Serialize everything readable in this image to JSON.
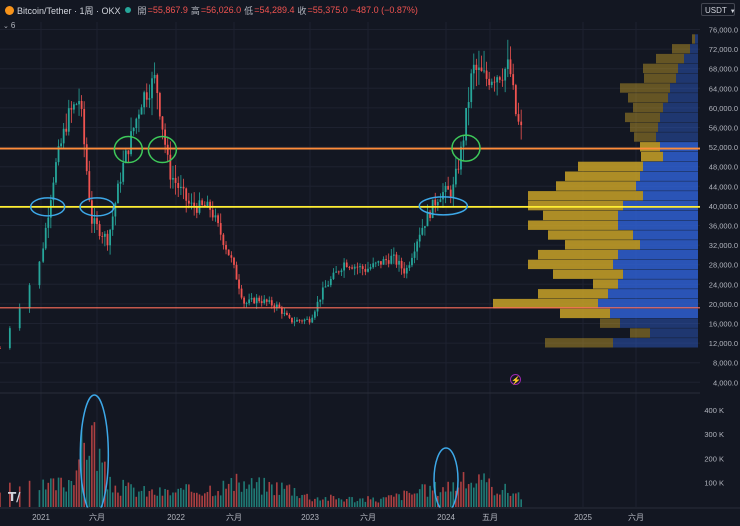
{
  "header": {
    "symbol": "Bitcoin/Tether · 1周 · OKX",
    "open_label": "開",
    "open_value": "=55,867.9",
    "high_label": "高",
    "high_value": "=56,026.0",
    "low_label": "低",
    "low_value": "=54,289.4",
    "close_label": "收",
    "close_value": "=55,375.0",
    "change_value": "−487.0 (−0.87%)"
  },
  "indicator_count": "6",
  "currency_unit": "USDT",
  "icons": [
    "chevron-down-icon",
    "bitcoin-icon",
    "status-dot-icon",
    "lightning-icon",
    "tradingview-logo-icon"
  ],
  "colors": {
    "background": "#131722",
    "up": "#26a69a",
    "down": "#ef5350",
    "vp_left": "#c9a227",
    "vp_right": "#2f5fd0",
    "line_orange": "#ff8c3a",
    "line_yellow": "#ffee33",
    "line_red": "#ff6e5a",
    "ellipse_blue": "#3da8e8",
    "ellipse_green": "#3ec95a"
  },
  "chart_data": {
    "type": "candlestick",
    "x_ticks": [
      "2021",
      "六月",
      "2022",
      "六月",
      "2023",
      "六月",
      "2024",
      "五月",
      "2025",
      "六月"
    ],
    "y_ticks": [
      "76,000.0",
      "72,000.0",
      "68,000.0",
      "64,000.0",
      "60,000.0",
      "56,000.0",
      "52,000.0",
      "48,000.0",
      "44,000.0",
      "40,000.0",
      "36,000.0",
      "32,000.0",
      "28,000.0",
      "24,000.0",
      "20,000.0",
      "16,000.0",
      "12,000.0",
      "8,000.0",
      "4,000.0"
    ],
    "y_ticks_values": [
      76000,
      72000,
      68000,
      64000,
      60000,
      56000,
      52000,
      48000,
      44000,
      40000,
      36000,
      32000,
      28000,
      24000,
      20000,
      16000,
      12000,
      8000,
      4000
    ],
    "volume_ticks": [
      "400 K",
      "300 K",
      "200 K",
      "100 K"
    ],
    "volume_ticks_values": [
      400000,
      300000,
      200000,
      100000
    ],
    "price_path": [
      [
        2020.92,
        11000
      ],
      [
        2021.0,
        29000
      ],
      [
        2021.1,
        47000
      ],
      [
        2021.2,
        58000
      ],
      [
        2021.29,
        62000
      ],
      [
        2021.38,
        37000
      ],
      [
        2021.5,
        33000
      ],
      [
        2021.6,
        47000
      ],
      [
        2021.75,
        62000
      ],
      [
        2021.85,
        66000
      ],
      [
        2021.95,
        47000
      ],
      [
        2022.1,
        40000
      ],
      [
        2022.25,
        39500
      ],
      [
        2022.4,
        29000
      ],
      [
        2022.5,
        20000
      ],
      [
        2022.6,
        21000
      ],
      [
        2022.75,
        19500
      ],
      [
        2022.85,
        16500
      ],
      [
        2023.0,
        16800
      ],
      [
        2023.1,
        23000
      ],
      [
        2023.25,
        28500
      ],
      [
        2023.4,
        27000
      ],
      [
        2023.6,
        29500
      ],
      [
        2023.7,
        26500
      ],
      [
        2023.8,
        34500
      ],
      [
        2023.95,
        42500
      ],
      [
        2024.05,
        43000
      ],
      [
        2024.12,
        52000
      ],
      [
        2024.2,
        68000
      ],
      [
        2024.3,
        66000
      ],
      [
        2024.42,
        67500
      ],
      [
        2024.47,
        68500
      ],
      [
        2024.52,
        58000
      ],
      [
        2024.55,
        55375
      ]
    ],
    "volume_path": [
      [
        2020.92,
        70000
      ],
      [
        2021.2,
        100000
      ],
      [
        2021.38,
        320000
      ],
      [
        2021.5,
        90000
      ],
      [
        2021.8,
        60000
      ],
      [
        2022.0,
        60000
      ],
      [
        2022.45,
        95000
      ],
      [
        2022.85,
        80000
      ],
      [
        2023.0,
        40000
      ],
      [
        2023.5,
        30000
      ],
      [
        2023.95,
        80000
      ],
      [
        2024.2,
        110000
      ],
      [
        2024.5,
        60000
      ],
      [
        2024.55,
        55000
      ]
    ],
    "volume_profile": [
      {
        "price": 74000,
        "left": 3,
        "right": 3
      },
      {
        "price": 72000,
        "left": 18,
        "right": 8
      },
      {
        "price": 70000,
        "left": 28,
        "right": 14
      },
      {
        "price": 68000,
        "left": 35,
        "right": 20
      },
      {
        "price": 66000,
        "left": 32,
        "right": 22
      },
      {
        "price": 64000,
        "left": 50,
        "right": 28
      },
      {
        "price": 62000,
        "left": 40,
        "right": 30
      },
      {
        "price": 60000,
        "left": 30,
        "right": 35
      },
      {
        "price": 58000,
        "left": 35,
        "right": 38
      },
      {
        "price": 56000,
        "left": 28,
        "right": 40
      },
      {
        "price": 54000,
        "left": 22,
        "right": 42
      },
      {
        "price": 52000,
        "left": 20,
        "right": 38
      },
      {
        "price": 50000,
        "left": 22,
        "right": 35
      },
      {
        "price": 48000,
        "left": 65,
        "right": 55
      },
      {
        "price": 46000,
        "left": 75,
        "right": 58
      },
      {
        "price": 44000,
        "left": 80,
        "right": 62
      },
      {
        "price": 42000,
        "left": 115,
        "right": 55
      },
      {
        "price": 40000,
        "left": 95,
        "right": 75
      },
      {
        "price": 38000,
        "left": 75,
        "right": 80
      },
      {
        "price": 36000,
        "left": 90,
        "right": 80
      },
      {
        "price": 34000,
        "left": 85,
        "right": 65
      },
      {
        "price": 32000,
        "left": 75,
        "right": 58
      },
      {
        "price": 30000,
        "left": 80,
        "right": 80
      },
      {
        "price": 28000,
        "left": 85,
        "right": 85
      },
      {
        "price": 26000,
        "left": 70,
        "right": 75
      },
      {
        "price": 24000,
        "left": 25,
        "right": 80
      },
      {
        "price": 22000,
        "left": 70,
        "right": 90
      },
      {
        "price": 20000,
        "left": 105,
        "right": 100
      },
      {
        "price": 18000,
        "left": 50,
        "right": 88
      },
      {
        "price": 16000,
        "left": 20,
        "right": 78
      },
      {
        "price": 14000,
        "left": 20,
        "right": 48
      },
      {
        "price": 12000,
        "left": 68,
        "right": 85
      }
    ],
    "horizontal_lines": [
      {
        "price": 51700,
        "color": "orange"
      },
      {
        "price": 39800,
        "color": "yellow"
      },
      {
        "price": 19200,
        "color": "red"
      }
    ],
    "ellipses": [
      {
        "x": 2021.05,
        "price": 39800,
        "color": "blue"
      },
      {
        "x": 2021.42,
        "price": 39800,
        "color": "blue"
      },
      {
        "x": 2021.65,
        "price": 51500,
        "color": "green"
      },
      {
        "x": 2021.9,
        "price": 51500,
        "color": "green"
      },
      {
        "x": 2023.98,
        "price": 40000,
        "color": "blue"
      },
      {
        "x": 2024.15,
        "price": 51800,
        "color": "green"
      }
    ],
    "volume_ellipses": [
      {
        "x": 2021.4,
        "color": "blue"
      },
      {
        "x": 2024.0,
        "color": "blue"
      }
    ]
  }
}
